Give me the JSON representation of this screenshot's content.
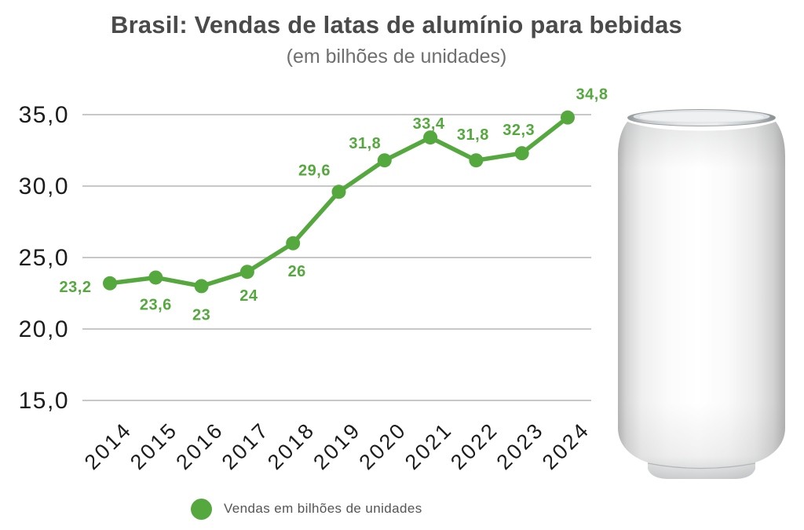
{
  "header": {
    "title": "Brasil: Vendas de latas de alumínio para bebidas",
    "subtitle": "(em bilhões de unidades)"
  },
  "chart_data": {
    "type": "line",
    "title": "Brasil: Vendas de latas de alumínio para bebidas",
    "subtitle": "(em bilhões de unidades)",
    "x": [
      "2014",
      "2015",
      "2016",
      "2017",
      "2018",
      "2019",
      "2020",
      "2021",
      "2022",
      "2023",
      "2024"
    ],
    "series": [
      {
        "name": "Vendas em bilhões de unidades",
        "values": [
          23.2,
          23.6,
          23,
          24,
          26,
          29.6,
          31.8,
          33.4,
          31.8,
          32.3,
          34.8
        ],
        "point_labels": [
          "23,2",
          "23,6",
          "23",
          "24",
          "26",
          "29,6",
          "31,8",
          "33,4",
          "31,8",
          "32,3",
          "34,8"
        ],
        "color": "#55a83e"
      }
    ],
    "ylim": [
      15,
      35
    ],
    "yticks": [
      {
        "value": 35,
        "label": "35,0"
      },
      {
        "value": 30,
        "label": "30,0"
      },
      {
        "value": 25,
        "label": "25,0"
      },
      {
        "value": 20,
        "label": "20,0"
      },
      {
        "value": 15,
        "label": "15,0"
      }
    ],
    "grid": true,
    "legend_position": "bottom"
  },
  "colors": {
    "line": "#55a83e",
    "grid": "#c8c8c8",
    "axis_text": "#1b1b1b",
    "title": "#4a4a4a",
    "subtitle": "#6f6f6f",
    "legend_text": "#555555"
  },
  "illustration": {
    "name": "aluminum-can"
  }
}
